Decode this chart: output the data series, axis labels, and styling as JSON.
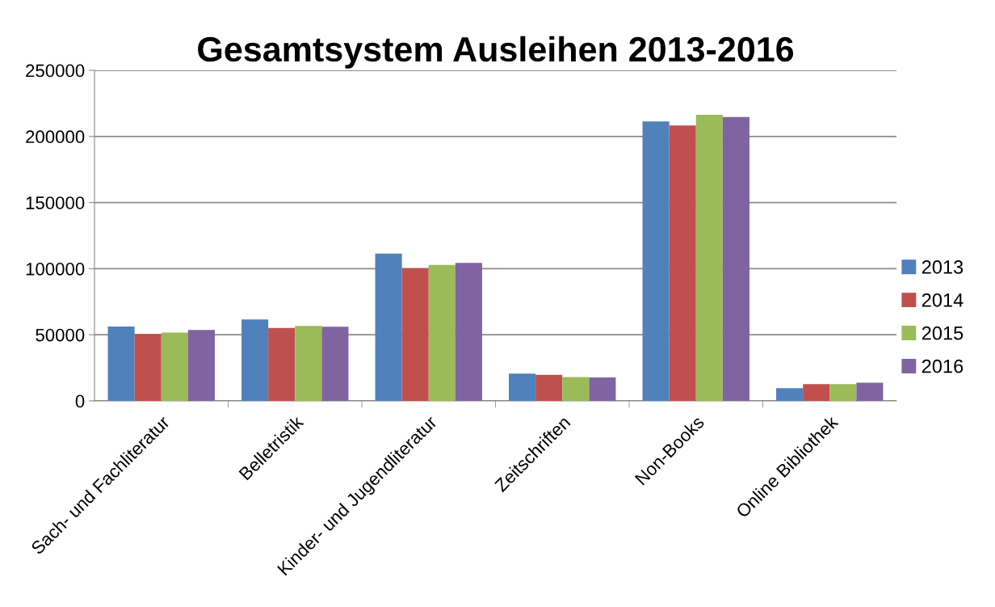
{
  "chart_data": {
    "type": "bar",
    "title": "Gesamtsystem Ausleihen 2013-2016",
    "categories": [
      "Sach- und Fachliteratur",
      "Belletristik",
      "Kinder- und Jugendliteratur",
      "Zeitschriften",
      "Non-Books",
      "Online Bibliothek"
    ],
    "series": [
      {
        "name": "2013",
        "color": "#4f81bd",
        "values": [
          56300,
          61600,
          111400,
          20700,
          211400,
          9600
        ]
      },
      {
        "name": "2014",
        "color": "#c0504d",
        "values": [
          50600,
          55100,
          100200,
          19700,
          208300,
          12700
        ]
      },
      {
        "name": "2015",
        "color": "#9bbb59",
        "values": [
          51600,
          56700,
          102900,
          18100,
          216400,
          12700
        ]
      },
      {
        "name": "2016",
        "color": "#8064a2",
        "values": [
          53700,
          56100,
          104300,
          17700,
          214700,
          13800
        ]
      }
    ],
    "ylim": [
      0,
      250000
    ],
    "yticks": [
      0,
      50000,
      100000,
      150000,
      200000,
      250000
    ],
    "grid": "y",
    "legend": "right"
  }
}
